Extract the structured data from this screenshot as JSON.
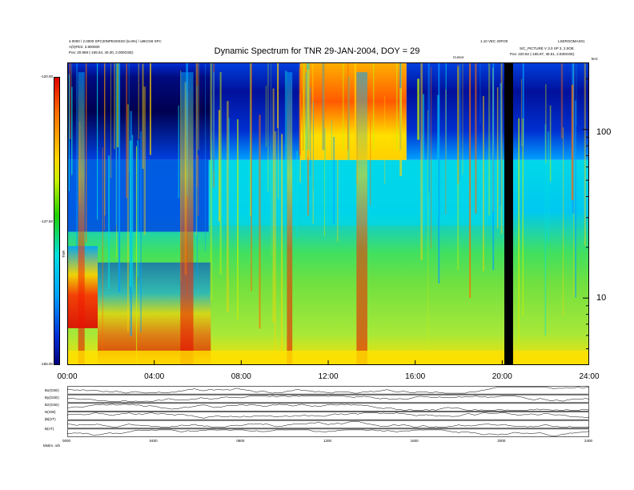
{
  "chart_data": [
    {
      "type": "heatmap",
      "title": "Dynamic Spectrum for TNR 29-JAN-2004, DOY = 29",
      "xlabel": "",
      "ylabel": "",
      "y_unit": "kHz",
      "y_scale": "log",
      "x_tick_labels": [
        "00:00",
        "04:00",
        "08:00",
        "12:00",
        "16:00",
        "20:00",
        "24:00"
      ],
      "x_hours": [
        0,
        4,
        8,
        12,
        16,
        20,
        24
      ],
      "y_tick_labels": [
        "100",
        "10"
      ],
      "y_tick_values": [
        100,
        10
      ],
      "ylim": [
        4,
        250
      ],
      "colorbar": {
        "label": "TNR",
        "tick_labels": [
          "-120.00",
          "-137.50",
          "-155.00"
        ],
        "tick_values": [
          -120,
          -137.5,
          -155
        ]
      },
      "data_gap_hours": [
        20.1,
        20.5
      ],
      "band_split_khz": 66,
      "colormap": [
        "#000080",
        "#0030d8",
        "#00a0ff",
        "#00e0e0",
        "#20d000",
        "#c8f000",
        "#ffd400",
        "#ff6a00",
        "#e00000"
      ],
      "annotation": "Cursor"
    },
    {
      "type": "line",
      "panels": [
        {
          "name": "B(nT)"
        },
        {
          "name": "Bx(GSE)"
        },
        {
          "name": "By(GSE)"
        },
        {
          "name": "Bz(GSE)"
        },
        {
          "name": "N(SW)"
        },
        {
          "name": "|B|(nT)"
        }
      ],
      "x_tick_labels": [
        "0000",
        "0400",
        "0800",
        "1200",
        "1600",
        "2000",
        "2400"
      ],
      "left_footer": "Mstim. orb"
    }
  ],
  "header": {
    "left_line1": "4.0000 / 2.0000 SPC20NPES0SS0 (tco#e) / u8KC59 SFC",
    "left_line2": "A(h)FES: 2.800000",
    "left_pos": "Pos:    20.869 (-165.54, 40.30, 2.000GSE)",
    "right_line1": "1.10 VEC 20FO0",
    "right_line2": "LSEROOMAS01",
    "right_line3": "S/C_PICTURE  V 3.0 SP 3, 2.0OE",
    "right_pos": "Pos:   220.82 (-165.97, 38.51, 2.830GSE)",
    "cursor_label": "Cursor"
  }
}
